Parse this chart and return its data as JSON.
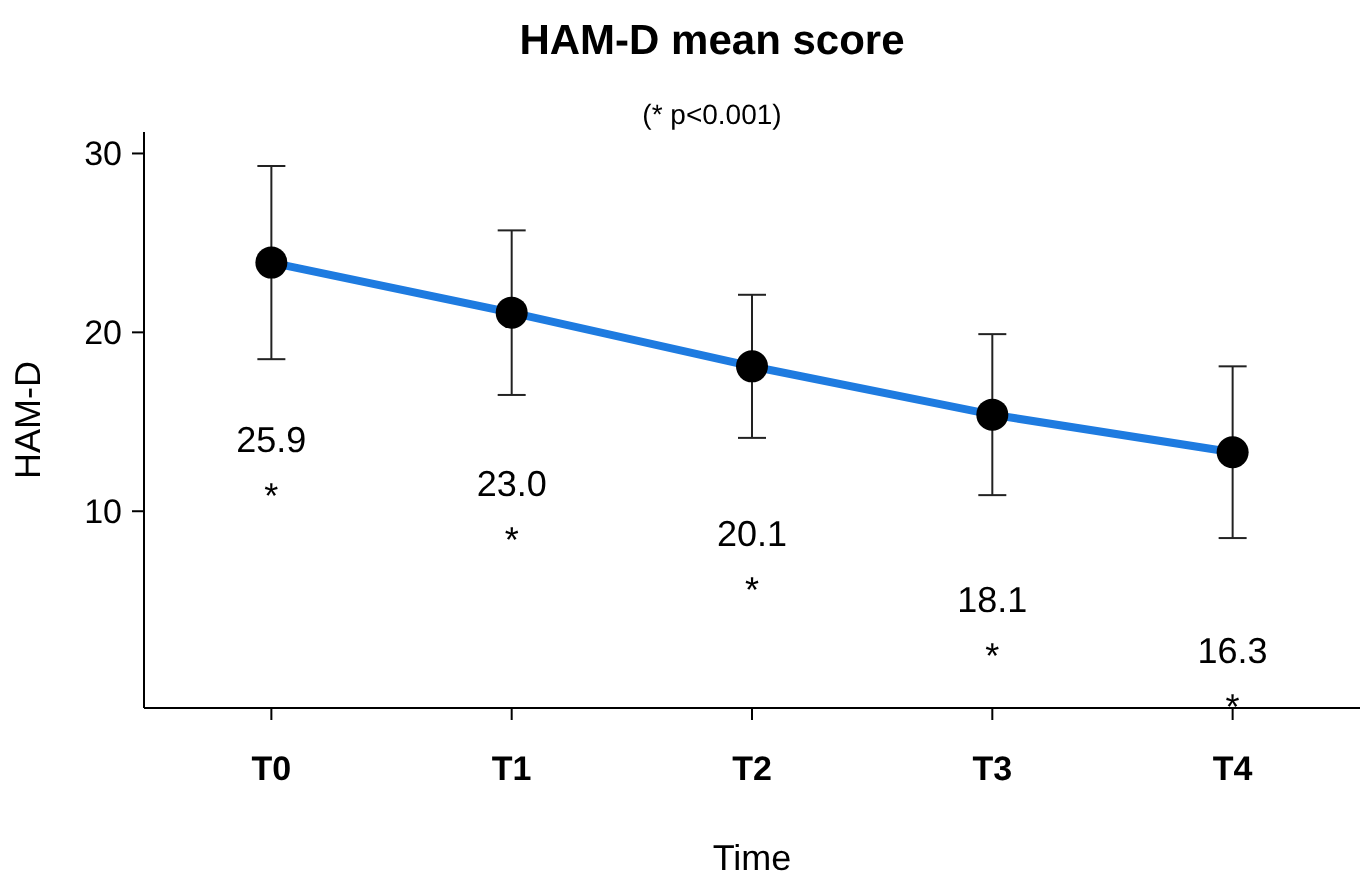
{
  "chart_data": {
    "type": "line",
    "title": "HAM-D mean score",
    "subtitle": "(* p<0.001)",
    "xlabel": "Time",
    "ylabel": "HAM-D",
    "categories": [
      "T0",
      "T1",
      "T2",
      "T3",
      "T4"
    ],
    "series": [
      {
        "color": "#1e7be0",
        "values": [
          23.9,
          21.1,
          18.1,
          15.4,
          13.3
        ],
        "errors": [
          5.4,
          4.6,
          4.0,
          4.5,
          4.8
        ]
      }
    ],
    "ylim": [
      -1,
      31.2
    ],
    "yticks": [
      10,
      20,
      30
    ],
    "grid": false,
    "marker": "circle",
    "line_style": "solid",
    "annotations": [
      "25.9",
      "*",
      "23.0",
      "*",
      "20.1",
      "*",
      "18.1",
      "*",
      "16.3",
      "*"
    ]
  }
}
